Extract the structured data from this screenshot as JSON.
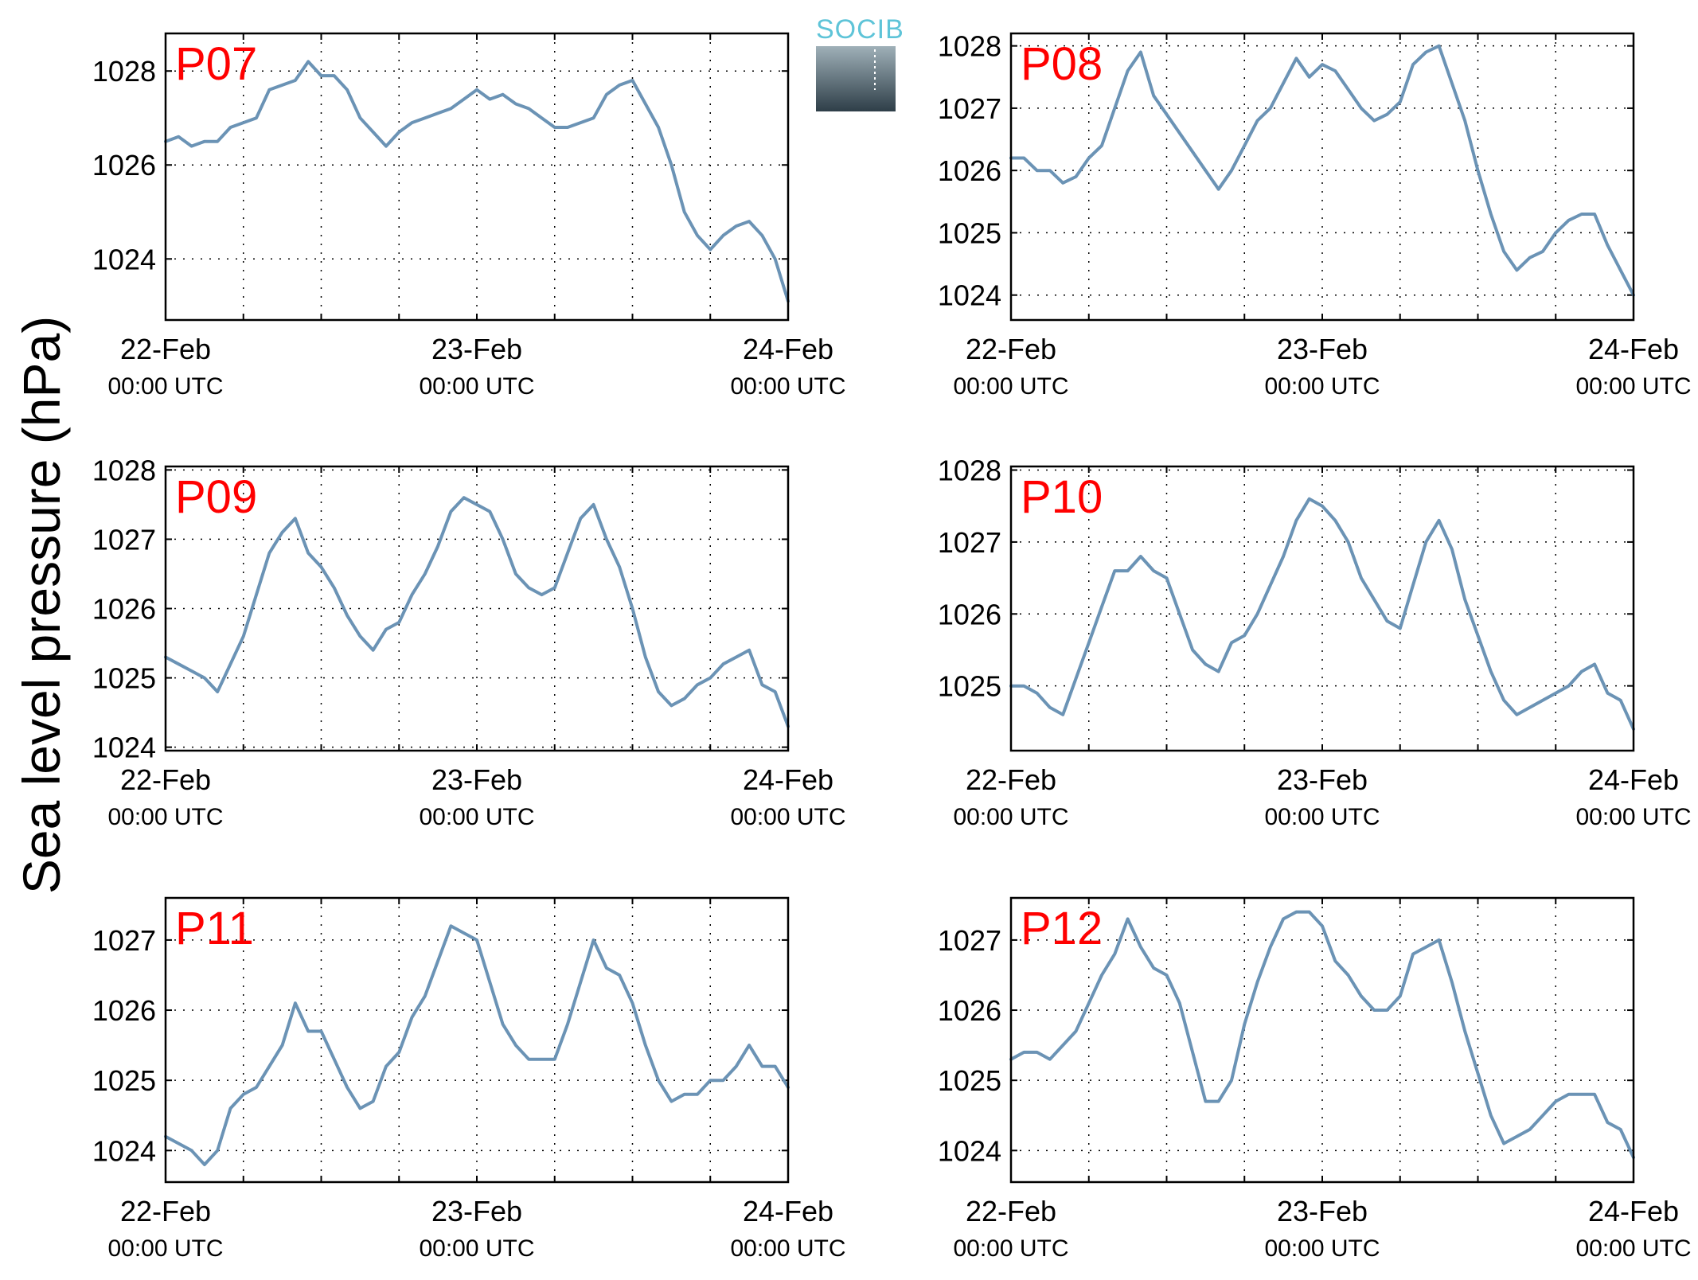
{
  "figure": {
    "ylabel": "Sea level pressure (hPa)",
    "logo_text": "SOCIB",
    "line_color": "#6b93b5",
    "label_color": "#ff0000"
  },
  "chart_data": [
    {
      "type": "line",
      "panel_label": "P07",
      "x_ticks": [
        {
          "label": "22-Feb",
          "sub": "00:00 UTC",
          "hour": 0
        },
        {
          "label": "23-Feb",
          "sub": "00:00 UTC",
          "hour": 24
        },
        {
          "label": "24-Feb",
          "sub": "00:00 UTC",
          "hour": 48
        }
      ],
      "xlim": [
        0,
        48
      ],
      "ylim": [
        1022.7,
        1028.8
      ],
      "yticks": [
        1024,
        1026,
        1028
      ],
      "grid": true,
      "series": [
        {
          "x": [
            0,
            1,
            2,
            3,
            4,
            5,
            6,
            7,
            8,
            9,
            10,
            11,
            12,
            13,
            14,
            15,
            16,
            17,
            18,
            19,
            20,
            21,
            22,
            23,
            24,
            25,
            26,
            27,
            28,
            29,
            30,
            31,
            32,
            33,
            34,
            35,
            36,
            37,
            38,
            39,
            40,
            41,
            42,
            43,
            44,
            45,
            46,
            47,
            48
          ],
          "values": [
            1026.5,
            1026.6,
            1026.4,
            1026.5,
            1026.5,
            1026.8,
            1026.9,
            1027.0,
            1027.6,
            1027.7,
            1027.8,
            1028.2,
            1027.9,
            1027.9,
            1027.6,
            1027.0,
            1026.7,
            1026.4,
            1026.7,
            1026.9,
            1027.0,
            1027.1,
            1027.2,
            1027.4,
            1027.6,
            1027.4,
            1027.5,
            1027.3,
            1027.2,
            1027.0,
            1026.8,
            1026.8,
            1026.9,
            1027.0,
            1027.5,
            1027.7,
            1027.8,
            1027.3,
            1026.8,
            1026.0,
            1025.0,
            1024.5,
            1024.2,
            1024.5,
            1024.7,
            1024.8,
            1024.5,
            1024.0,
            1023.1
          ]
        }
      ]
    },
    {
      "type": "line",
      "panel_label": "P08",
      "x_ticks": [
        {
          "label": "22-Feb",
          "sub": "00:00 UTC",
          "hour": 0
        },
        {
          "label": "23-Feb",
          "sub": "00:00 UTC",
          "hour": 24
        },
        {
          "label": "24-Feb",
          "sub": "00:00 UTC",
          "hour": 48
        }
      ],
      "xlim": [
        0,
        48
      ],
      "ylim": [
        1023.6,
        1028.2
      ],
      "yticks": [
        1024,
        1025,
        1026,
        1027,
        1028
      ],
      "grid": true,
      "series": [
        {
          "x": [
            0,
            1,
            2,
            3,
            4,
            5,
            6,
            7,
            8,
            9,
            10,
            11,
            12,
            13,
            14,
            15,
            16,
            17,
            18,
            19,
            20,
            21,
            22,
            23,
            24,
            25,
            26,
            27,
            28,
            29,
            30,
            31,
            32,
            33,
            34,
            35,
            36,
            37,
            38,
            39,
            40,
            41,
            42,
            43,
            44,
            45,
            46,
            47,
            48
          ],
          "values": [
            1026.2,
            1026.2,
            1026.0,
            1026.0,
            1025.8,
            1025.9,
            1026.2,
            1026.4,
            1027.0,
            1027.6,
            1027.9,
            1027.2,
            1026.9,
            1026.6,
            1026.3,
            1026.0,
            1025.7,
            1026.0,
            1026.4,
            1026.8,
            1027.0,
            1027.4,
            1027.8,
            1027.5,
            1027.7,
            1027.6,
            1027.3,
            1027.0,
            1026.8,
            1026.9,
            1027.1,
            1027.7,
            1027.9,
            1028.0,
            1027.4,
            1026.8,
            1026.0,
            1025.3,
            1024.7,
            1024.4,
            1024.6,
            1024.7,
            1025.0,
            1025.2,
            1025.3,
            1025.3,
            1024.8,
            1024.4,
            1024.0
          ]
        }
      ]
    },
    {
      "type": "line",
      "panel_label": "P09",
      "x_ticks": [
        {
          "label": "22-Feb",
          "sub": "00:00 UTC",
          "hour": 0
        },
        {
          "label": "23-Feb",
          "sub": "00:00 UTC",
          "hour": 24
        },
        {
          "label": "24-Feb",
          "sub": "00:00 UTC",
          "hour": 48
        }
      ],
      "xlim": [
        0,
        48
      ],
      "ylim": [
        1023.95,
        1028.05
      ],
      "yticks": [
        1024,
        1025,
        1026,
        1027,
        1028
      ],
      "grid": true,
      "series": [
        {
          "x": [
            0,
            1,
            2,
            3,
            4,
            5,
            6,
            7,
            8,
            9,
            10,
            11,
            12,
            13,
            14,
            15,
            16,
            17,
            18,
            19,
            20,
            21,
            22,
            23,
            24,
            25,
            26,
            27,
            28,
            29,
            30,
            31,
            32,
            33,
            34,
            35,
            36,
            37,
            38,
            39,
            40,
            41,
            42,
            43,
            44,
            45,
            46,
            47,
            48
          ],
          "values": [
            1025.3,
            1025.2,
            1025.1,
            1025.0,
            1024.8,
            1025.2,
            1025.6,
            1026.2,
            1026.8,
            1027.1,
            1027.3,
            1026.8,
            1026.6,
            1026.3,
            1025.9,
            1025.6,
            1025.4,
            1025.7,
            1025.8,
            1026.2,
            1026.5,
            1026.9,
            1027.4,
            1027.6,
            1027.5,
            1027.4,
            1027.0,
            1026.5,
            1026.3,
            1026.2,
            1026.3,
            1026.8,
            1027.3,
            1027.5,
            1027.0,
            1026.6,
            1026.0,
            1025.3,
            1024.8,
            1024.6,
            1024.7,
            1024.9,
            1025.0,
            1025.2,
            1025.3,
            1025.4,
            1024.9,
            1024.8,
            1024.3
          ]
        }
      ]
    },
    {
      "type": "line",
      "panel_label": "P10",
      "x_ticks": [
        {
          "label": "22-Feb",
          "sub": "00:00 UTC",
          "hour": 0
        },
        {
          "label": "23-Feb",
          "sub": "00:00 UTC",
          "hour": 24
        },
        {
          "label": "24-Feb",
          "sub": "00:00 UTC",
          "hour": 48
        }
      ],
      "xlim": [
        0,
        48
      ],
      "ylim": [
        1024.1,
        1028.05
      ],
      "yticks": [
        1025,
        1026,
        1027,
        1028
      ],
      "grid": true,
      "series": [
        {
          "x": [
            0,
            1,
            2,
            3,
            4,
            5,
            6,
            7,
            8,
            9,
            10,
            11,
            12,
            13,
            14,
            15,
            16,
            17,
            18,
            19,
            20,
            21,
            22,
            23,
            24,
            25,
            26,
            27,
            28,
            29,
            30,
            31,
            32,
            33,
            34,
            35,
            36,
            37,
            38,
            39,
            40,
            41,
            42,
            43,
            44,
            45,
            46,
            47,
            48
          ],
          "values": [
            1025.0,
            1025.0,
            1024.9,
            1024.7,
            1024.6,
            1025.1,
            1025.6,
            1026.1,
            1026.6,
            1026.6,
            1026.8,
            1026.6,
            1026.5,
            1026.0,
            1025.5,
            1025.3,
            1025.2,
            1025.6,
            1025.7,
            1026.0,
            1026.4,
            1026.8,
            1027.3,
            1027.6,
            1027.5,
            1027.3,
            1027.0,
            1026.5,
            1026.2,
            1025.9,
            1025.8,
            1026.4,
            1027.0,
            1027.3,
            1026.9,
            1026.2,
            1025.7,
            1025.2,
            1024.8,
            1024.6,
            1024.7,
            1024.8,
            1024.9,
            1025.0,
            1025.2,
            1025.3,
            1024.9,
            1024.8,
            1024.4
          ]
        }
      ]
    },
    {
      "type": "line",
      "panel_label": "P11",
      "x_ticks": [
        {
          "label": "22-Feb",
          "sub": "00:00 UTC",
          "hour": 0
        },
        {
          "label": "23-Feb",
          "sub": "00:00 UTC",
          "hour": 24
        },
        {
          "label": "24-Feb",
          "sub": "00:00 UTC",
          "hour": 48
        }
      ],
      "xlim": [
        0,
        48
      ],
      "ylim": [
        1023.55,
        1027.6
      ],
      "yticks": [
        1024,
        1025,
        1026,
        1027
      ],
      "grid": true,
      "series": [
        {
          "x": [
            0,
            1,
            2,
            3,
            4,
            5,
            6,
            7,
            8,
            9,
            10,
            11,
            12,
            13,
            14,
            15,
            16,
            17,
            18,
            19,
            20,
            21,
            22,
            23,
            24,
            25,
            26,
            27,
            28,
            29,
            30,
            31,
            32,
            33,
            34,
            35,
            36,
            37,
            38,
            39,
            40,
            41,
            42,
            43,
            44,
            45,
            46,
            47,
            48
          ],
          "values": [
            1024.2,
            1024.1,
            1024.0,
            1023.8,
            1024.0,
            1024.6,
            1024.8,
            1024.9,
            1025.2,
            1025.5,
            1026.1,
            1025.7,
            1025.7,
            1025.3,
            1024.9,
            1024.6,
            1024.7,
            1025.2,
            1025.4,
            1025.9,
            1026.2,
            1026.7,
            1027.2,
            1027.1,
            1027.0,
            1026.4,
            1025.8,
            1025.5,
            1025.3,
            1025.3,
            1025.3,
            1025.8,
            1026.4,
            1027.0,
            1026.6,
            1026.5,
            1026.1,
            1025.5,
            1025.0,
            1024.7,
            1024.8,
            1024.8,
            1025.0,
            1025.0,
            1025.2,
            1025.5,
            1025.2,
            1025.2,
            1024.9
          ]
        }
      ]
    },
    {
      "type": "line",
      "panel_label": "P12",
      "x_ticks": [
        {
          "label": "22-Feb",
          "sub": "00:00 UTC",
          "hour": 0
        },
        {
          "label": "23-Feb",
          "sub": "00:00 UTC",
          "hour": 24
        },
        {
          "label": "24-Feb",
          "sub": "00:00 UTC",
          "hour": 48
        }
      ],
      "xlim": [
        0,
        48
      ],
      "ylim": [
        1023.55,
        1027.6
      ],
      "yticks": [
        1024,
        1025,
        1026,
        1027
      ],
      "grid": true,
      "series": [
        {
          "x": [
            0,
            1,
            2,
            3,
            4,
            5,
            6,
            7,
            8,
            9,
            10,
            11,
            12,
            13,
            14,
            15,
            16,
            17,
            18,
            19,
            20,
            21,
            22,
            23,
            24,
            25,
            26,
            27,
            28,
            29,
            30,
            31,
            32,
            33,
            34,
            35,
            36,
            37,
            38,
            39,
            40,
            41,
            42,
            43,
            44,
            45,
            46,
            47,
            48
          ],
          "values": [
            1025.3,
            1025.4,
            1025.4,
            1025.3,
            1025.5,
            1025.7,
            1026.1,
            1026.5,
            1026.8,
            1027.3,
            1026.9,
            1026.6,
            1026.5,
            1026.1,
            1025.4,
            1024.7,
            1024.7,
            1025.0,
            1025.8,
            1026.4,
            1026.9,
            1027.3,
            1027.4,
            1027.4,
            1027.2,
            1026.7,
            1026.5,
            1026.2,
            1026.0,
            1026.0,
            1026.2,
            1026.8,
            1026.9,
            1027.0,
            1026.4,
            1025.7,
            1025.1,
            1024.5,
            1024.1,
            1024.2,
            1024.3,
            1024.5,
            1024.7,
            1024.8,
            1024.8,
            1024.8,
            1024.4,
            1024.3,
            1023.9
          ]
        }
      ]
    }
  ]
}
